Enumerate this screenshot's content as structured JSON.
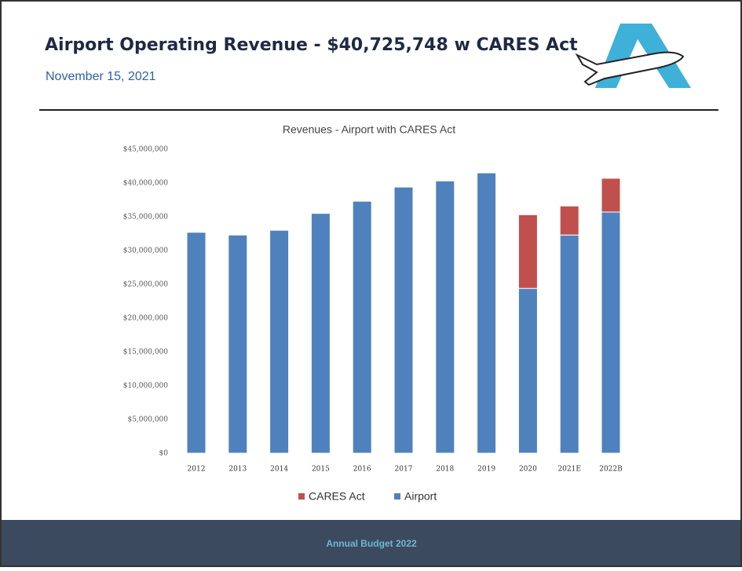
{
  "header": {
    "title": "Airport Operating Revenue - $40,725,748 w CARES Act",
    "subtitle": "November 15, 2021"
  },
  "footer": {
    "text": "Annual Budget 2022"
  },
  "chart_data": {
    "type": "stacked_bar",
    "title": "Revenues - Airport with CARES Act",
    "categories": [
      "2012",
      "2013",
      "2014",
      "2015",
      "2016",
      "2017",
      "2018",
      "2019",
      "2020",
      "2021E",
      "2022B"
    ],
    "series": [
      {
        "name": "CARES Act",
        "color": "#c0504d",
        "values": [
          null,
          null,
          null,
          null,
          null,
          null,
          null,
          null,
          10900000,
          4300000,
          5000000
        ]
      },
      {
        "name": "Airport",
        "color": "#4f81bd",
        "values": [
          32700000,
          32300000,
          33000000,
          35500000,
          37300000,
          39400000,
          40300000,
          41500000,
          24400000,
          32300000,
          35700000
        ]
      }
    ],
    "ylim": [
      0,
      45000000
    ],
    "yticks": [
      {
        "value": 0,
        "label": "$0"
      },
      {
        "value": 5000000,
        "label": "$5,000,000"
      },
      {
        "value": 10000000,
        "label": "$10,000,000"
      },
      {
        "value": 15000000,
        "label": "$15,000,000"
      },
      {
        "value": 20000000,
        "label": "$20,000,000"
      },
      {
        "value": 25000000,
        "label": "$25,000,000"
      },
      {
        "value": 30000000,
        "label": "$30,000,000"
      },
      {
        "value": 35000000,
        "label": "$35,000,000"
      },
      {
        "value": 40000000,
        "label": "$40,000,000"
      },
      {
        "value": 45000000,
        "label": "$45,000,000"
      }
    ],
    "grid": false,
    "legend": "bottom"
  }
}
